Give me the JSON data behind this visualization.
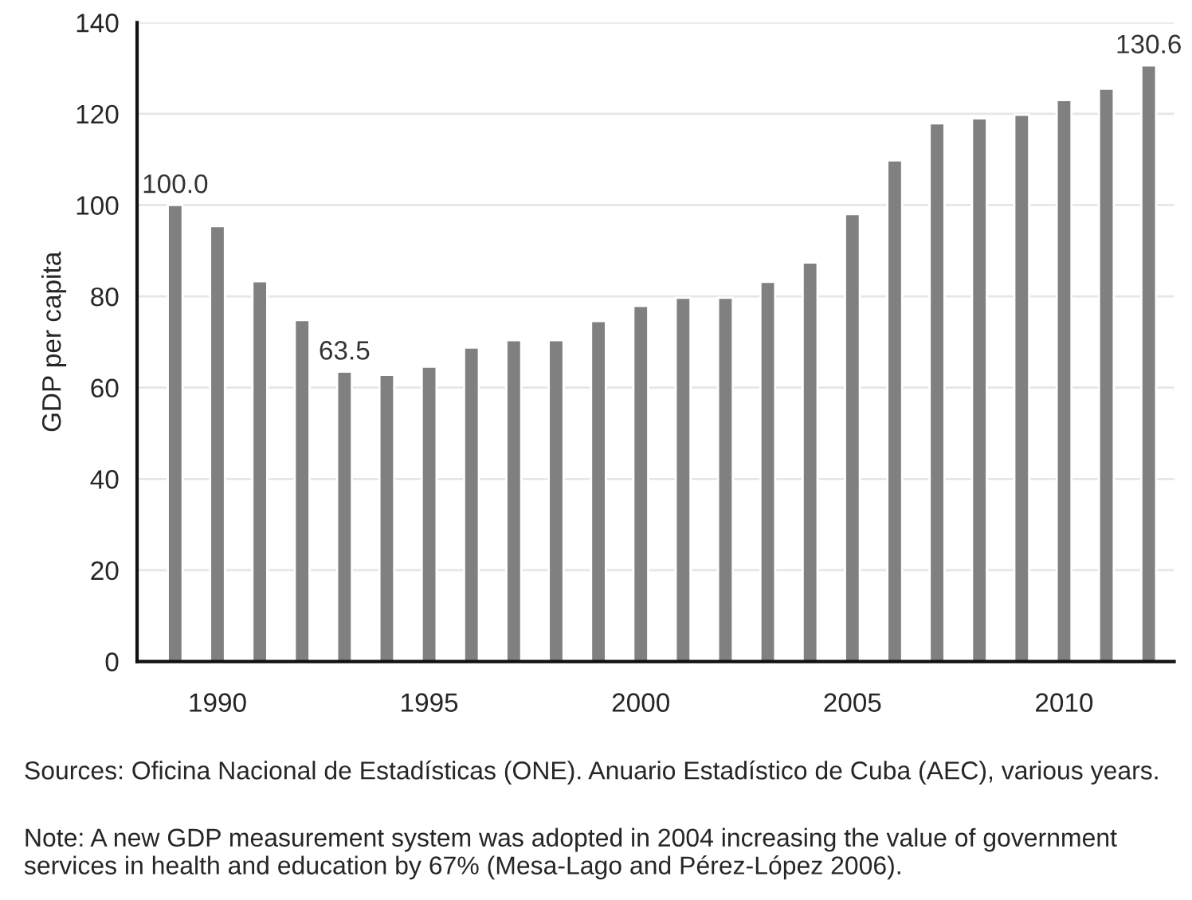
{
  "chart_data": {
    "type": "bar",
    "ylabel": "GDP per capita",
    "categories": [
      null,
      "1990",
      null,
      null,
      null,
      null,
      "1995",
      null,
      null,
      null,
      null,
      "2000",
      null,
      null,
      null,
      null,
      "2005",
      null,
      null,
      null,
      null,
      "2010",
      null,
      null
    ],
    "values": [
      100.0,
      95.4,
      83.3,
      74.8,
      63.5,
      62.8,
      64.6,
      68.8,
      70.4,
      70.4,
      74.6,
      77.9,
      79.7,
      79.7,
      83.2,
      87.4,
      98.0,
      109.8,
      117.9,
      119.0,
      119.8,
      123.0,
      125.5,
      130.6
    ],
    "value_labels": [
      "100.0",
      null,
      null,
      null,
      "63.5",
      null,
      null,
      null,
      null,
      null,
      null,
      null,
      null,
      null,
      null,
      null,
      null,
      null,
      null,
      null,
      null,
      null,
      null,
      "130.6"
    ],
    "color": "#808080",
    "ylim": [
      0,
      140
    ],
    "yticks": [
      0,
      20,
      40,
      60,
      80,
      100,
      120,
      140
    ],
    "grid": "y",
    "annotations": [
      "Sources: Oficina Nacional de Estadísticas (ONE). Anuario Estadístico de Cuba (AEC), various years.",
      "Note: A new GDP measurement system was adopted in 2004 increasing the value of government services in health and education by 67% (Mesa-Lago and Pérez-López 2006)."
    ]
  }
}
